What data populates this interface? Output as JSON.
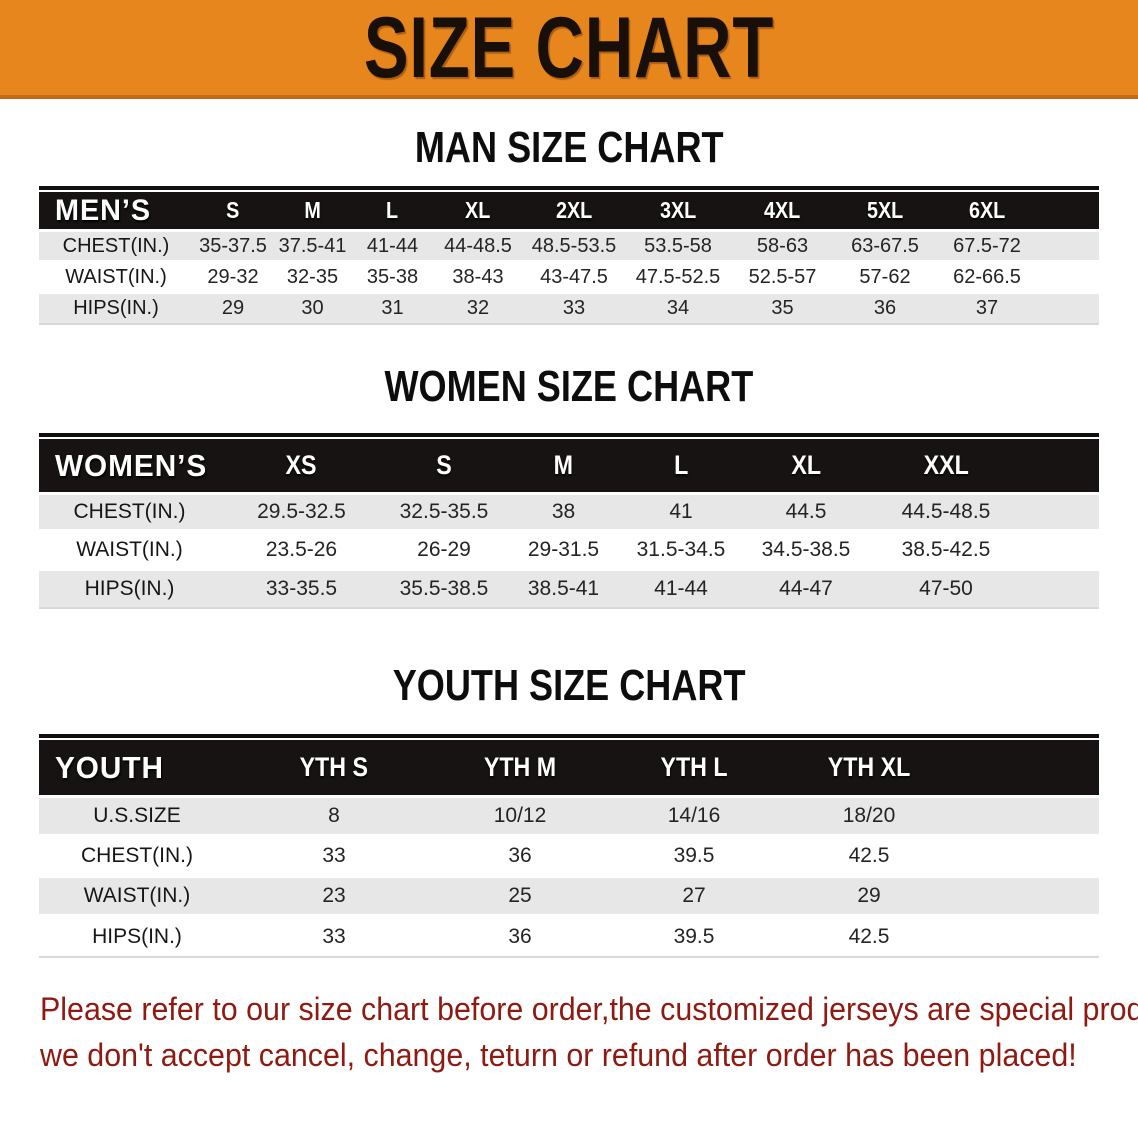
{
  "banner": {
    "title": "SIZE CHART"
  },
  "sections": {
    "men": {
      "title": "MAN SIZE CHART",
      "table": {
        "header": [
          "MEN’S",
          "S",
          "M",
          "L",
          "XL",
          "2XL",
          "3XL",
          "4XL",
          "5XL",
          "6XL"
        ],
        "rows": [
          {
            "label": "CHEST(IN.)",
            "values": [
              "35-37.5",
              "37.5-41",
              "41-44",
              "44-48.5",
              "48.5-53.5",
              "53.5-58",
              "58-63",
              "63-67.5",
              "67.5-72"
            ]
          },
          {
            "label": "WAIST(IN.)",
            "values": [
              "29-32",
              "32-35",
              "35-38",
              "38-43",
              "43-47.5",
              "47.5-52.5",
              "52.5-57",
              "57-62",
              "62-66.5"
            ]
          },
          {
            "label": "HIPS(IN.)",
            "values": [
              "29",
              "30",
              "31",
              "32",
              "33",
              "34",
              "35",
              "36",
              "37"
            ]
          }
        ]
      }
    },
    "women": {
      "title": "WOMEN SIZE CHART",
      "table": {
        "header": [
          "WOMEN’S",
          "XS",
          "S",
          "M",
          "L",
          "XL",
          "XXL"
        ],
        "rows": [
          {
            "label": "CHEST(IN.)",
            "values": [
              "29.5-32.5",
              "32.5-35.5",
              "38",
              "41",
              "44.5",
              "44.5-48.5"
            ]
          },
          {
            "label": "WAIST(IN.)",
            "values": [
              "23.5-26",
              "26-29",
              "29-31.5",
              "31.5-34.5",
              "34.5-38.5",
              "38.5-42.5"
            ]
          },
          {
            "label": "HIPS(IN.)",
            "values": [
              "33-35.5",
              "35.5-38.5",
              "38.5-41",
              "41-44",
              "44-47",
              "47-50"
            ]
          }
        ]
      }
    },
    "youth": {
      "title": "YOUTH SIZE CHART",
      "table": {
        "header": [
          "YOUTH",
          "YTH S",
          "YTH M",
          "YTH L",
          "YTH XL"
        ],
        "rows": [
          {
            "label": "U.S.SIZE",
            "values": [
              "8",
              "10/12",
              "14/16",
              "18/20"
            ]
          },
          {
            "label": "CHEST(IN.)",
            "values": [
              "33",
              "36",
              "39.5",
              "42.5"
            ]
          },
          {
            "label": "WAIST(IN.)",
            "values": [
              "23",
              "25",
              "27",
              "29"
            ]
          },
          {
            "label": "HIPS(IN.)",
            "values": [
              "33",
              "36",
              "39.5",
              "42.5"
            ]
          }
        ]
      }
    }
  },
  "disclaimer": {
    "line1": "Please refer to our size chart before order,the customized jerseys are special products,",
    "line2": "we don't accept cancel, change, teturn or refund after order has been placed!"
  },
  "colors": {
    "banner_orange": "#E8861E",
    "banner_edge": "#C26A16",
    "table_header_black": "#171312",
    "row_gray": "#e8e7e7",
    "row_white": "#ffffff",
    "disclaimer_red": "#8e1a12",
    "title_black": "#0d0d0d"
  }
}
